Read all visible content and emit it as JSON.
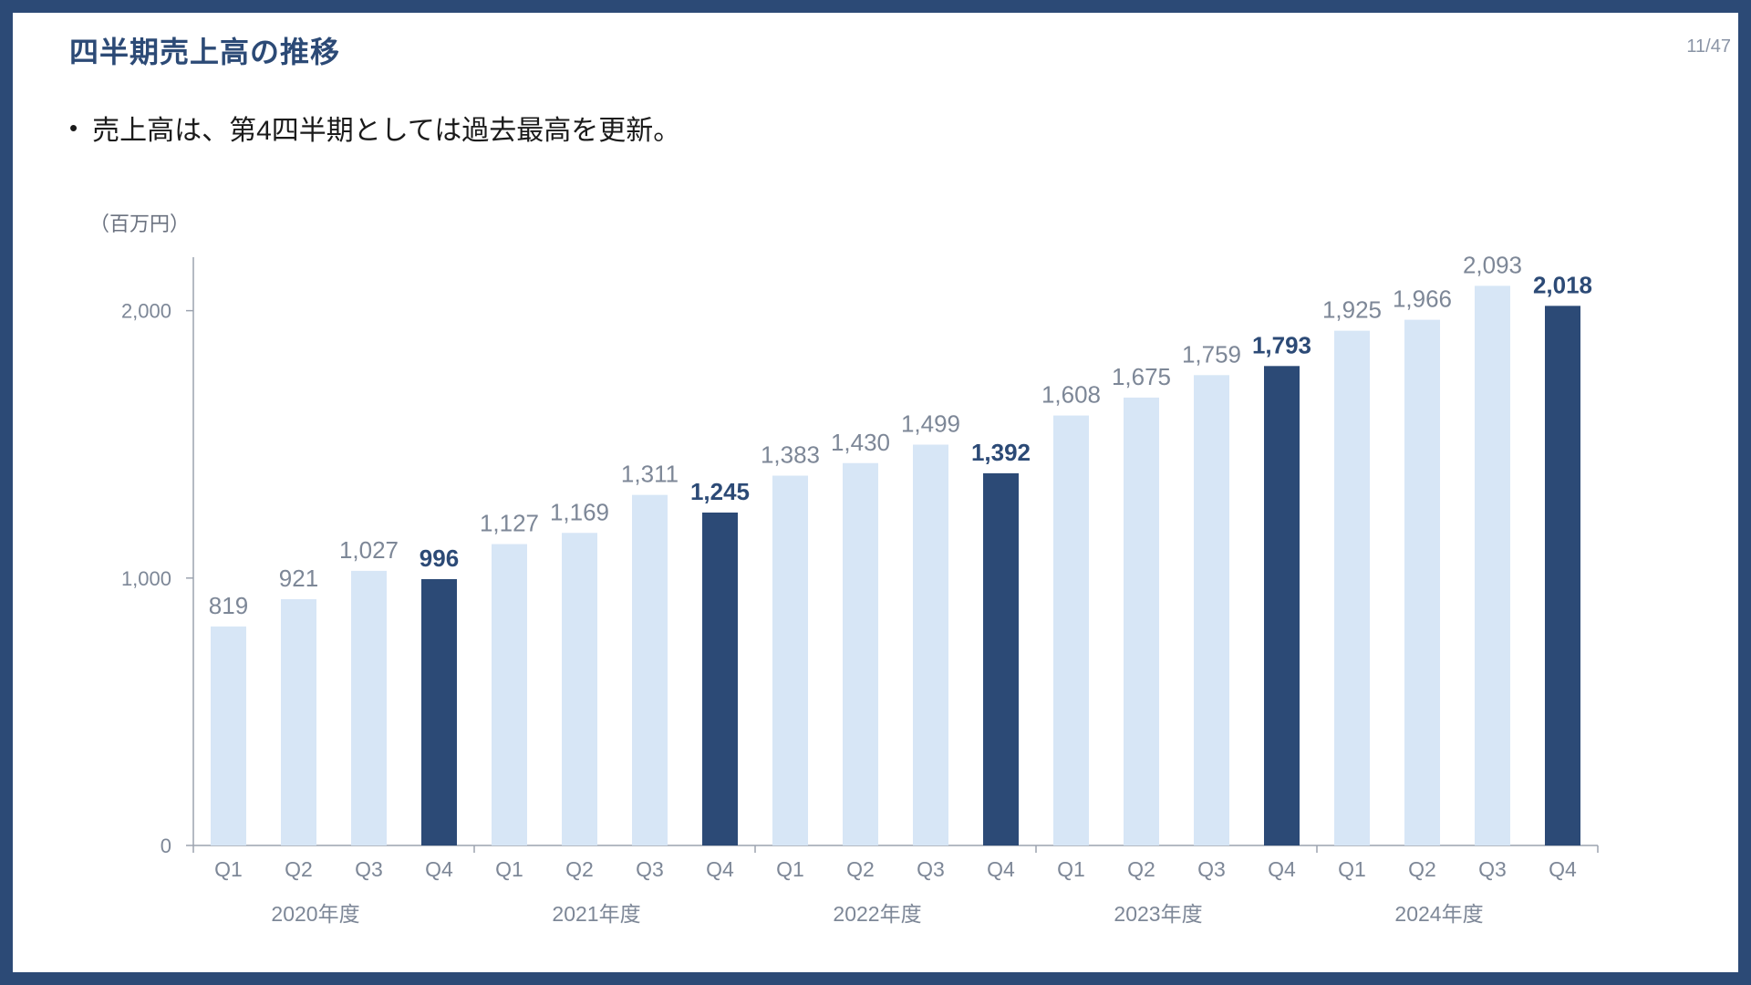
{
  "slide": {
    "title": "四半期売上高の推移",
    "page_number": "11/47",
    "bullet": "売上高は、第4四半期としては過去最高を更新。",
    "unit_label": "（百万円）"
  },
  "colors": {
    "frame": "#2c4a76",
    "highlight_bar": "#2c4a76",
    "regular_bar": "#d7e6f6",
    "highlight_label": "#2c4a76",
    "regular_label": "#7d8797",
    "axis": "#9ca3af"
  },
  "chart_data": {
    "type": "bar",
    "title": "",
    "xlabel": "",
    "ylabel": "（百万円）",
    "ylim": [
      0,
      2200
    ],
    "yticks": [
      {
        "value": 0,
        "label": "0"
      },
      {
        "value": 1000,
        "label": "1,000"
      },
      {
        "value": 2000,
        "label": "2,000"
      }
    ],
    "years": [
      "2020年度",
      "2021年度",
      "2022年度",
      "2023年度",
      "2024年度"
    ],
    "quarters": [
      "Q1",
      "Q2",
      "Q3",
      "Q4"
    ],
    "bars": [
      {
        "year": "2020年度",
        "quarter": "Q1",
        "value": 819,
        "label": "819",
        "highlight": false
      },
      {
        "year": "2020年度",
        "quarter": "Q2",
        "value": 921,
        "label": "921",
        "highlight": false
      },
      {
        "year": "2020年度",
        "quarter": "Q3",
        "value": 1027,
        "label": "1,027",
        "highlight": false
      },
      {
        "year": "2020年度",
        "quarter": "Q4",
        "value": 996,
        "label": "996",
        "highlight": true
      },
      {
        "year": "2021年度",
        "quarter": "Q1",
        "value": 1127,
        "label": "1,127",
        "highlight": false
      },
      {
        "year": "2021年度",
        "quarter": "Q2",
        "value": 1169,
        "label": "1,169",
        "highlight": false
      },
      {
        "year": "2021年度",
        "quarter": "Q3",
        "value": 1311,
        "label": "1,311",
        "highlight": false
      },
      {
        "year": "2021年度",
        "quarter": "Q4",
        "value": 1245,
        "label": "1,245",
        "highlight": true
      },
      {
        "year": "2022年度",
        "quarter": "Q1",
        "value": 1383,
        "label": "1,383",
        "highlight": false
      },
      {
        "year": "2022年度",
        "quarter": "Q2",
        "value": 1430,
        "label": "1,430",
        "highlight": false
      },
      {
        "year": "2022年度",
        "quarter": "Q3",
        "value": 1499,
        "label": "1,499",
        "highlight": false
      },
      {
        "year": "2022年度",
        "quarter": "Q4",
        "value": 1392,
        "label": "1,392",
        "highlight": true
      },
      {
        "year": "2023年度",
        "quarter": "Q1",
        "value": 1608,
        "label": "1,608",
        "highlight": false
      },
      {
        "year": "2023年度",
        "quarter": "Q2",
        "value": 1675,
        "label": "1,675",
        "highlight": false
      },
      {
        "year": "2023年度",
        "quarter": "Q3",
        "value": 1759,
        "label": "1,759",
        "highlight": false
      },
      {
        "year": "2023年度",
        "quarter": "Q4",
        "value": 1793,
        "label": "1,793",
        "highlight": true
      },
      {
        "year": "2024年度",
        "quarter": "Q1",
        "value": 1925,
        "label": "1,925",
        "highlight": false
      },
      {
        "year": "2024年度",
        "quarter": "Q2",
        "value": 1966,
        "label": "1,966",
        "highlight": false
      },
      {
        "year": "2024年度",
        "quarter": "Q3",
        "value": 2093,
        "label": "2,093",
        "highlight": false
      },
      {
        "year": "2024年度",
        "quarter": "Q4",
        "value": 2018,
        "label": "2,018",
        "highlight": true
      }
    ]
  }
}
